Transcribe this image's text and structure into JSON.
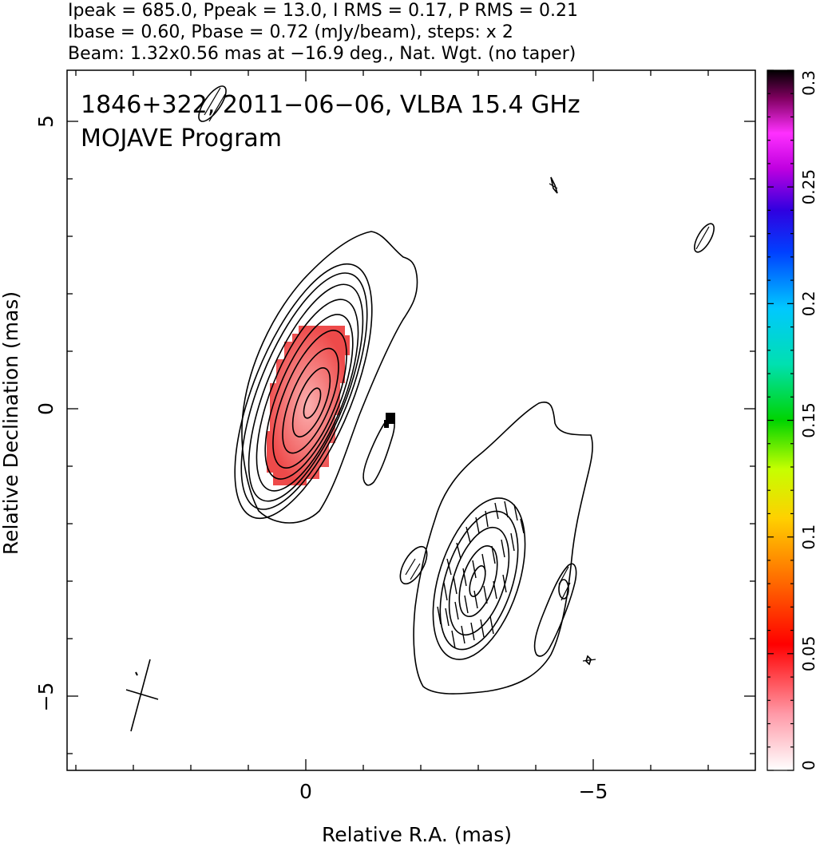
{
  "header": {
    "line1": "Ipeak = 685.0, Ppeak = 13.0, I RMS = 0.17, P RMS = 0.21",
    "line2": "Ibase = 0.60, Pbase = 0.72 (mJy/beam), steps: x 2",
    "line3": "Beam: 1.32x0.56 mas at −16.9 deg., Nat. Wgt. (no taper)"
  },
  "chart_data": {
    "type": "heatmap",
    "source_label": "1846+322, 2011−06−06, VLBA 15.4 GHz",
    "program_label": "MOJAVE Program",
    "xlabel": "Relative R.A. (mas)",
    "ylabel": "Relative Declination (mas)",
    "xlim": [
      4,
      -8
    ],
    "ylim": [
      -6.2,
      5.9
    ],
    "x_ticks": [
      0,
      -5
    ],
    "x_tick_labels": [
      "0",
      "−5"
    ],
    "y_ticks": [
      5,
      0,
      -5
    ],
    "y_tick_labels": [
      "5",
      "0",
      "−5"
    ],
    "grid": false,
    "colorbar": {
      "range": [
        0,
        0.3
      ],
      "ticks": [
        0,
        0.05,
        0.1,
        0.15,
        0.2,
        0.25,
        0.3
      ],
      "tick_labels": [
        "0",
        "0.05",
        "0.1",
        "0.15",
        "0.2",
        "0.25",
        "0.3"
      ]
    },
    "core": {
      "x": -0.1,
      "y": 0.1,
      "intensity_peak_mJy_per_beam": 685.0,
      "polarized_fraction_color_value": 0.03
    },
    "jet_component": {
      "x": -3.0,
      "y": -2.9
    },
    "beam": {
      "major_mas": 1.32,
      "minor_mas": 0.56,
      "pa_deg": -16.9
    },
    "contour_base_mJy_per_beam": 0.6,
    "contour_step_factor": 2,
    "colors": {
      "contour": "#000000",
      "pol_fill": "#f26262",
      "pol_fill_light": "#fb9a9a"
    }
  }
}
